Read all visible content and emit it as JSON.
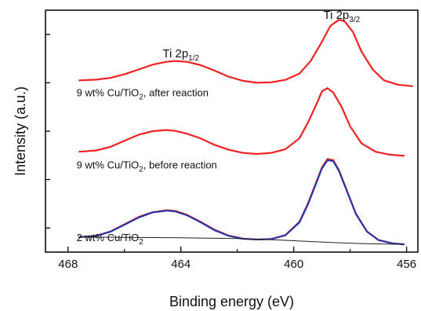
{
  "chart_data": {
    "type": "line",
    "xlabel": "Binding energy (eV)",
    "ylabel": "Intensity (a.u.)",
    "xlim": [
      468.8,
      455.6
    ],
    "x_reversed": true,
    "x_ticks": [
      468,
      464,
      460,
      456
    ],
    "y_tick_labels_shown": false,
    "ylim": [
      0,
      100
    ],
    "y_minor_ticks": [
      10,
      30,
      50,
      70,
      90
    ],
    "grid": false,
    "colors": {
      "spectrum": "#ee2222",
      "fit": "#2233aa",
      "background": "#222222",
      "axis": "#111111"
    },
    "annotations": [
      {
        "id": "ti2p12",
        "main": "Ti 2p",
        "sub": "1/2",
        "x": 464.0,
        "y": 80.5
      },
      {
        "id": "ti2p32",
        "main": "Ti 2p",
        "sub": "3/2",
        "x": 458.3,
        "y": 96.5
      },
      {
        "id": "label_after",
        "main": "9 wt% Cu/TiO",
        "sub": "2",
        "rest": ", after reaction",
        "x": 467.7,
        "y": 64.5
      },
      {
        "id": "label_before",
        "main": "9 wt% Cu/TiO",
        "sub": "2",
        "rest": ", before reaction",
        "x": 467.7,
        "y": 34.5
      },
      {
        "id": "label_2wt",
        "main": "2 wt% Cu/TiO",
        "sub": "2",
        "rest": "",
        "x": 467.7,
        "y": 4.5
      }
    ],
    "series": [
      {
        "role": "spectrum",
        "panel": "9 wt% after reaction",
        "x": [
          467.6,
          467.0,
          466.5,
          466.0,
          465.5,
          465.0,
          464.5,
          464.2,
          463.8,
          463.3,
          462.8,
          462.3,
          461.8,
          461.3,
          460.8,
          460.3,
          459.8,
          459.4,
          459.0,
          458.7,
          458.4,
          458.2,
          457.9,
          457.6,
          457.2,
          456.8,
          456.3,
          455.8
        ],
        "y": [
          71,
          71.3,
          72,
          73.5,
          75.5,
          77.5,
          78.7,
          79,
          78.7,
          77.3,
          75,
          72.5,
          70.8,
          70,
          70.2,
          71.2,
          73.8,
          79,
          87,
          93.5,
          96,
          95.5,
          91,
          83,
          75.5,
          71,
          69.2,
          68.6
        ]
      },
      {
        "role": "spectrum",
        "panel": "9 wt% before reaction",
        "x": [
          467.6,
          467.0,
          466.5,
          466.0,
          465.5,
          465.0,
          464.5,
          464.2,
          463.8,
          463.3,
          462.8,
          462.3,
          461.8,
          461.3,
          460.8,
          460.3,
          459.8,
          459.5,
          459.2,
          459.0,
          458.8,
          458.6,
          458.3,
          458.0,
          457.6,
          457.1,
          456.6,
          456.1
        ],
        "y": [
          41.5,
          42,
          43.5,
          46,
          48.5,
          50,
          50.5,
          50.1,
          49,
          47,
          44.3,
          42.3,
          41,
          40.6,
          41,
          42.5,
          47,
          53.5,
          61,
          66.5,
          67.8,
          66,
          60,
          52,
          45,
          41.5,
          40.3,
          39.8
        ]
      },
      {
        "role": "spectrum",
        "panel": "2 wt%",
        "x": [
          467.6,
          467.0,
          466.5,
          466.0,
          465.5,
          465.0,
          464.5,
          464.2,
          463.8,
          463.3,
          462.8,
          462.3,
          461.8,
          461.3,
          460.8,
          460.3,
          459.8,
          459.5,
          459.2,
          459.0,
          458.8,
          458.6,
          458.4,
          458.1,
          457.8,
          457.4,
          457.0,
          456.5,
          456.1
        ],
        "y": [
          6.2,
          6.8,
          8.5,
          11.5,
          14.5,
          16.5,
          17.3,
          17,
          15.5,
          12.5,
          9.2,
          6.8,
          5.6,
          5.2,
          5.4,
          7,
          12.5,
          20,
          29,
          35,
          38.5,
          38,
          34,
          25,
          16,
          8.5,
          5,
          3.6,
          3.2
        ]
      },
      {
        "role": "fit",
        "panel": "2 wt%",
        "x": [
          467.6,
          467.0,
          466.5,
          466.0,
          465.5,
          465.0,
          464.5,
          464.2,
          463.8,
          463.3,
          462.8,
          462.3,
          461.8,
          461.3,
          460.8,
          460.3,
          459.8,
          459.5,
          459.2,
          459.0,
          458.8,
          458.6,
          458.4,
          458.1,
          457.8,
          457.4,
          457.0,
          456.5,
          456.1
        ],
        "y": [
          6.2,
          6.7,
          8.4,
          11.3,
          14.3,
          16.4,
          17.1,
          16.8,
          15.3,
          12.3,
          9.0,
          6.7,
          5.5,
          5.2,
          5.4,
          6.9,
          12.2,
          19.6,
          28.6,
          34.6,
          38.0,
          37.6,
          33.6,
          24.8,
          15.8,
          8.4,
          5.0,
          3.6,
          3.2
        ]
      },
      {
        "role": "background",
        "panel": "2 wt%",
        "x": [
          467.6,
          466.0,
          464.0,
          462.0,
          460.5,
          459.5,
          458.5,
          457.5,
          456.1
        ],
        "y": [
          6.2,
          6.1,
          5.9,
          5.6,
          5.0,
          4.4,
          3.9,
          3.5,
          3.2
        ]
      }
    ]
  }
}
